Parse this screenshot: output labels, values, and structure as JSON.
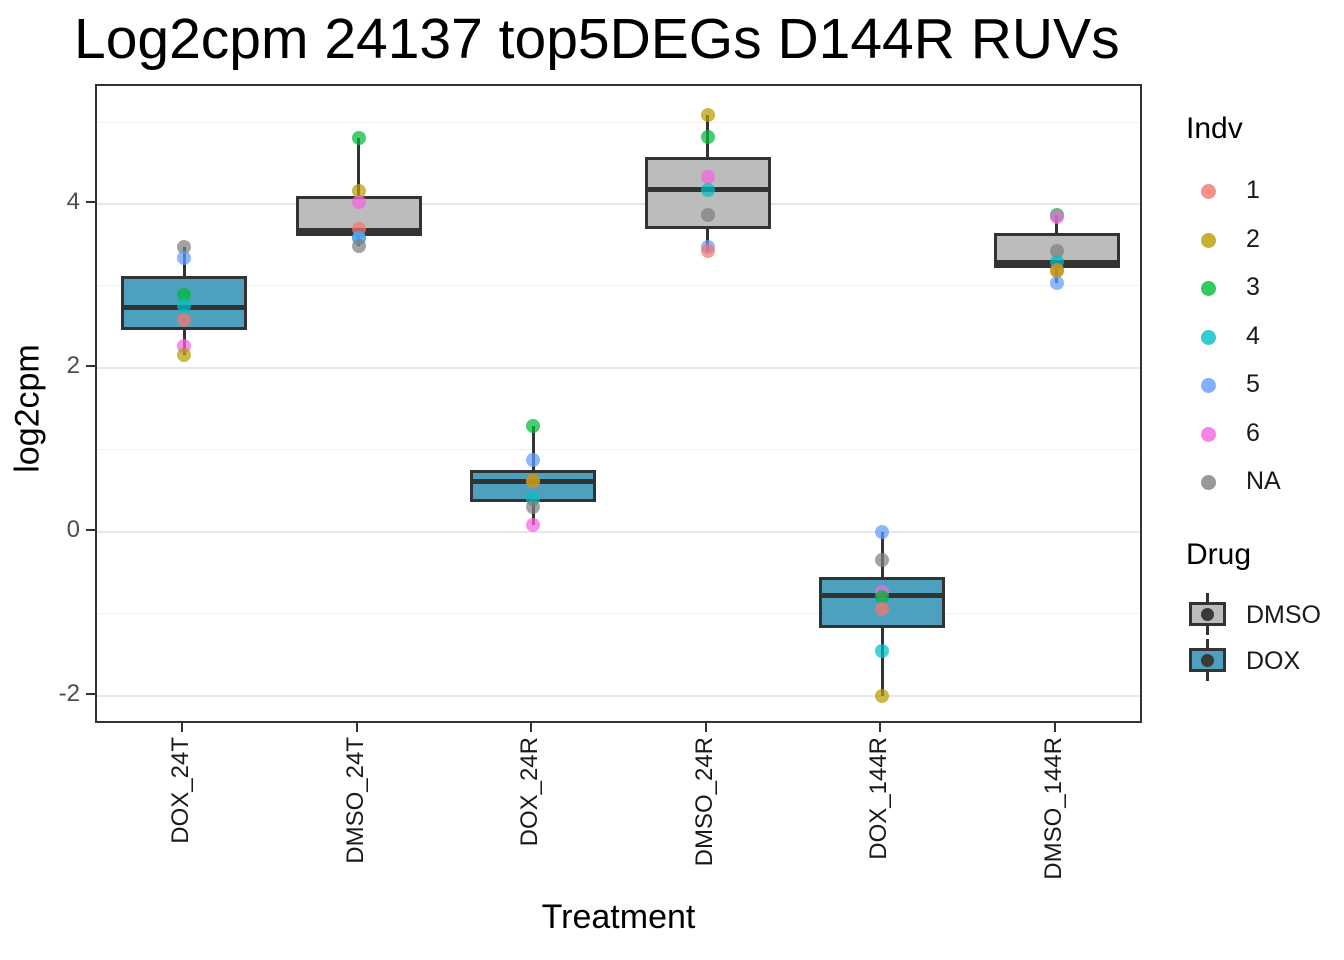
{
  "title": "Log2cpm 24137 top5DEGs D144R RUVs",
  "chart_data": {
    "type": "boxplot",
    "title": "Log2cpm 24137 top5DEGs D144R RUVs",
    "xlabel": "Treatment",
    "ylabel": "log2cpm",
    "ylim": [
      -2.36,
      5.44
    ],
    "yticks": [
      -2,
      0,
      2,
      4
    ],
    "yticks_minor": [
      -1,
      1,
      3,
      5
    ],
    "grid": true,
    "legend_position": "right",
    "categories": [
      "DOX_24T",
      "DMSO_24T",
      "DOX_24R",
      "DMSO_24R",
      "DOX_144R",
      "DMSO_144R"
    ],
    "groups": [
      {
        "label": "DOX_24T",
        "drug": "DOX",
        "whisker_low": 2.16,
        "q1": 2.46,
        "median": 2.74,
        "q3": 3.12,
        "whisker_high": 3.48,
        "points": [
          {
            "indv": "NA",
            "value": 3.48
          },
          {
            "indv": "5",
            "value": 3.34
          },
          {
            "indv": "3",
            "value": 2.89
          },
          {
            "indv": "4",
            "value": 2.76
          },
          {
            "indv": "1",
            "value": 2.58
          },
          {
            "indv": "6",
            "value": 2.27
          },
          {
            "indv": "2",
            "value": 2.16
          }
        ]
      },
      {
        "label": "DMSO_24T",
        "drug": "DMSO",
        "whisker_low": 3.49,
        "q1": 3.61,
        "median": 3.68,
        "q3": 4.1,
        "whisker_high": 4.81,
        "points": [
          {
            "indv": "3",
            "value": 4.81
          },
          {
            "indv": "2",
            "value": 4.16
          },
          {
            "indv": "6",
            "value": 4.03
          },
          {
            "indv": "1",
            "value": 3.7
          },
          {
            "indv": "4",
            "value": 3.58
          },
          {
            "indv": "5",
            "value": 3.58
          },
          {
            "indv": "NA",
            "value": 3.49
          }
        ]
      },
      {
        "label": "DOX_24R",
        "drug": "DOX",
        "whisker_low": 0.08,
        "q1": 0.36,
        "median": 0.61,
        "q3": 0.75,
        "whisker_high": 1.29,
        "points": [
          {
            "indv": "3",
            "value": 1.29
          },
          {
            "indv": "5",
            "value": 0.87
          },
          {
            "indv": "1",
            "value": 0.62
          },
          {
            "indv": "2",
            "value": 0.62
          },
          {
            "indv": "4",
            "value": 0.4
          },
          {
            "indv": "NA",
            "value": 0.3
          },
          {
            "indv": "6",
            "value": 0.08
          }
        ]
      },
      {
        "label": "DMSO_24R",
        "drug": "DMSO",
        "whisker_low": 3.42,
        "q1": 3.69,
        "median": 4.18,
        "q3": 4.57,
        "whisker_high": 5.08,
        "points": [
          {
            "indv": "2",
            "value": 5.08
          },
          {
            "indv": "3",
            "value": 4.82
          },
          {
            "indv": "6",
            "value": 4.33
          },
          {
            "indv": "4",
            "value": 4.17
          },
          {
            "indv": "NA",
            "value": 3.86
          },
          {
            "indv": "5",
            "value": 3.47
          },
          {
            "indv": "1",
            "value": 3.42
          }
        ]
      },
      {
        "label": "DOX_144R",
        "drug": "DOX",
        "whisker_low": -2.0,
        "q1": -1.18,
        "median": -0.78,
        "q3": -0.55,
        "whisker_high": 0.0,
        "points": [
          {
            "indv": "5",
            "value": 0.0
          },
          {
            "indv": "NA",
            "value": -0.35
          },
          {
            "indv": "6",
            "value": -0.74
          },
          {
            "indv": "3",
            "value": -0.8
          },
          {
            "indv": "1",
            "value": -0.94
          },
          {
            "indv": "4",
            "value": -1.46
          },
          {
            "indv": "2",
            "value": -2.0
          }
        ]
      },
      {
        "label": "DMSO_144R",
        "drug": "DMSO",
        "whisker_low": 3.04,
        "q1": 3.22,
        "median": 3.28,
        "q3": 3.65,
        "whisker_high": 3.86,
        "points": [
          {
            "indv": "3",
            "value": 3.87
          },
          {
            "indv": "6",
            "value": 3.84
          },
          {
            "indv": "NA",
            "value": 3.43
          },
          {
            "indv": "4",
            "value": 3.29
          },
          {
            "indv": "1",
            "value": 3.2
          },
          {
            "indv": "2",
            "value": 3.18
          },
          {
            "indv": "5",
            "value": 3.04
          }
        ]
      }
    ],
    "indv_colors": {
      "1": "#F8766D",
      "2": "#B79F00",
      "3": "#00BA38",
      "4": "#00BFC4",
      "5": "#619CFF",
      "6": "#F564E2",
      "NA": "#7F7F7F"
    },
    "drug_colors": {
      "DMSO": "#BCBCBC",
      "DOX": "#4DA1BE"
    },
    "legend": {
      "indv": {
        "title": "Indv",
        "items": [
          {
            "label": "1",
            "color": "#F8766D"
          },
          {
            "label": "2",
            "color": "#B79F00"
          },
          {
            "label": "3",
            "color": "#00BA38"
          },
          {
            "label": "4",
            "color": "#00BFC4"
          },
          {
            "label": "5",
            "color": "#619CFF"
          },
          {
            "label": "6",
            "color": "#F564E2"
          },
          {
            "label": "NA",
            "color": "#7F7F7F"
          }
        ]
      },
      "drug": {
        "title": "Drug",
        "items": [
          {
            "label": "DMSO",
            "color": "#BCBCBC"
          },
          {
            "label": "DOX",
            "color": "#4DA1BE"
          }
        ]
      }
    }
  }
}
